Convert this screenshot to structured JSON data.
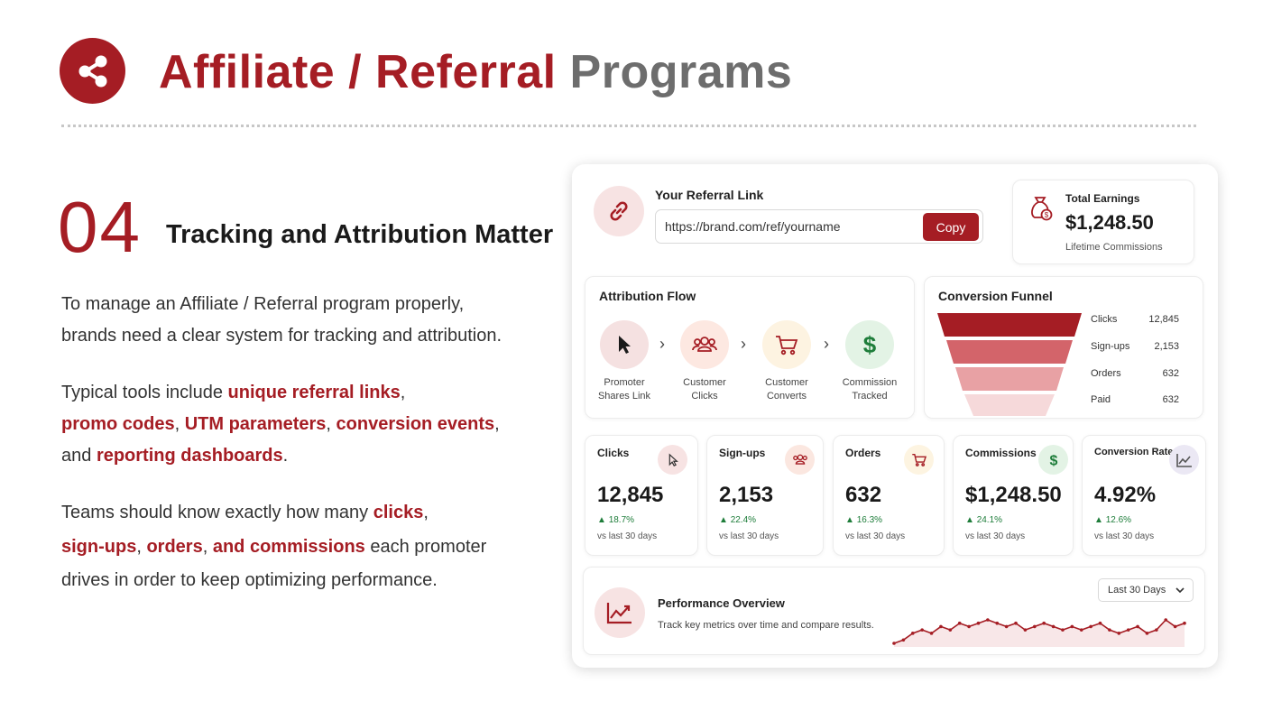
{
  "header": {
    "title_part1": "Affiliate / Referral",
    "title_part2": "Programs",
    "logo_icon": "share-icon",
    "brand_color": "#a51d24"
  },
  "section": {
    "number": "04",
    "heading": "Tracking and Attribution Matter"
  },
  "paragraphs": {
    "p1_line1": "To manage an Affiliate / Referral program properly,",
    "p1_line2": "brands need a clear system for tracking and attribution.",
    "p2_text1": "Typical tools include ",
    "p2_hl1": "unique referral links",
    "p2_sep1": ",",
    "p2_hl2": "promo codes",
    "p2_sep2": ", ",
    "p2_hl3": "UTM parameters",
    "p2_sep3": ", ",
    "p2_hl4": "conversion events",
    "p2_sep4": ",",
    "p2_text2": "and ",
    "p2_hl5": "reporting dashboards",
    "p2_end": ".",
    "p3_text1": "Teams should know exactly how many ",
    "p3_hl1": "clicks",
    "p3_sep1": ",",
    "p3_hl2": "sign-ups",
    "p3_sep2": ", ",
    "p3_hl3": "orders",
    "p3_sep3": ", ",
    "p3_hl4": "and commissions",
    "p3_text2": " each promoter",
    "p3_text3": "drives in order to keep optimizing performance."
  },
  "referral": {
    "label": "Your Referral Link",
    "url": "https://brand.com/ref/yourname",
    "copy_label": "Copy",
    "icon": "link-icon"
  },
  "earnings": {
    "label": "Total Earnings",
    "value": "$1,248.50",
    "sub": "Lifetime Commissions",
    "icon": "money-bag-icon"
  },
  "attribution": {
    "title": "Attribution Flow",
    "steps": [
      {
        "line1": "Promoter",
        "line2": "Shares Link",
        "icon": "cursor-icon",
        "color": "#f5e1e1"
      },
      {
        "line1": "Customer",
        "line2": "Clicks",
        "icon": "users-icon",
        "color": "#fde8e1"
      },
      {
        "line1": "Customer",
        "line2": "Converts",
        "icon": "cart-icon",
        "color": "#fdf3e1"
      },
      {
        "line1": "Commission",
        "line2": "Tracked",
        "icon": "dollar-icon",
        "color": "#e3f3e5"
      }
    ]
  },
  "funnel": {
    "title": "Conversion Funnel",
    "rows": [
      {
        "label": "Clicks",
        "value": "12,845",
        "color": "#a51d24"
      },
      {
        "label": "Sign-ups",
        "value": "2,153",
        "color": "#d3646a"
      },
      {
        "label": "Orders",
        "value": "632",
        "color": "#e8a1a4"
      },
      {
        "label": "Paid",
        "value": "632",
        "color": "#f6d9da"
      }
    ]
  },
  "metrics": [
    {
      "label": "Clicks",
      "value": "12,845",
      "change": "18.7%",
      "sub": "vs last 30 days",
      "icon": "cursor-icon",
      "icon_bg": "#f7e3e3"
    },
    {
      "label": "Sign-ups",
      "value": "2,153",
      "change": "22.4%",
      "sub": "vs last 30 days",
      "icon": "users-icon",
      "icon_bg": "#fbe7e0"
    },
    {
      "label": "Orders",
      "value": "632",
      "change": "16.3%",
      "sub": "vs last 30 days",
      "icon": "cart-icon",
      "icon_bg": "#fdf4e1"
    },
    {
      "label": "Commissions",
      "value": "$1,248.50",
      "change": "24.1%",
      "sub": "vs last 30 days",
      "icon": "dollar-icon",
      "icon_bg": "#e3f3e5"
    },
    {
      "label": "Conversion Rate",
      "value": "4.92%",
      "change": "12.6%",
      "sub": "vs last 30 days",
      "icon": "chart-icon",
      "icon_bg": "#ebe8f4"
    }
  ],
  "performance": {
    "title": "Performance Overview",
    "sub": "Track key metrics over time and compare results.",
    "range": "Last 30 Days",
    "icon": "trend-chart-icon",
    "sparkline": [
      2,
      3,
      5,
      6,
      5,
      7,
      6,
      8,
      7,
      8,
      9,
      8,
      7,
      8,
      6,
      7,
      8,
      7,
      6,
      7,
      6,
      7,
      8,
      6,
      5,
      6,
      7,
      5,
      6,
      9,
      7,
      8
    ]
  }
}
